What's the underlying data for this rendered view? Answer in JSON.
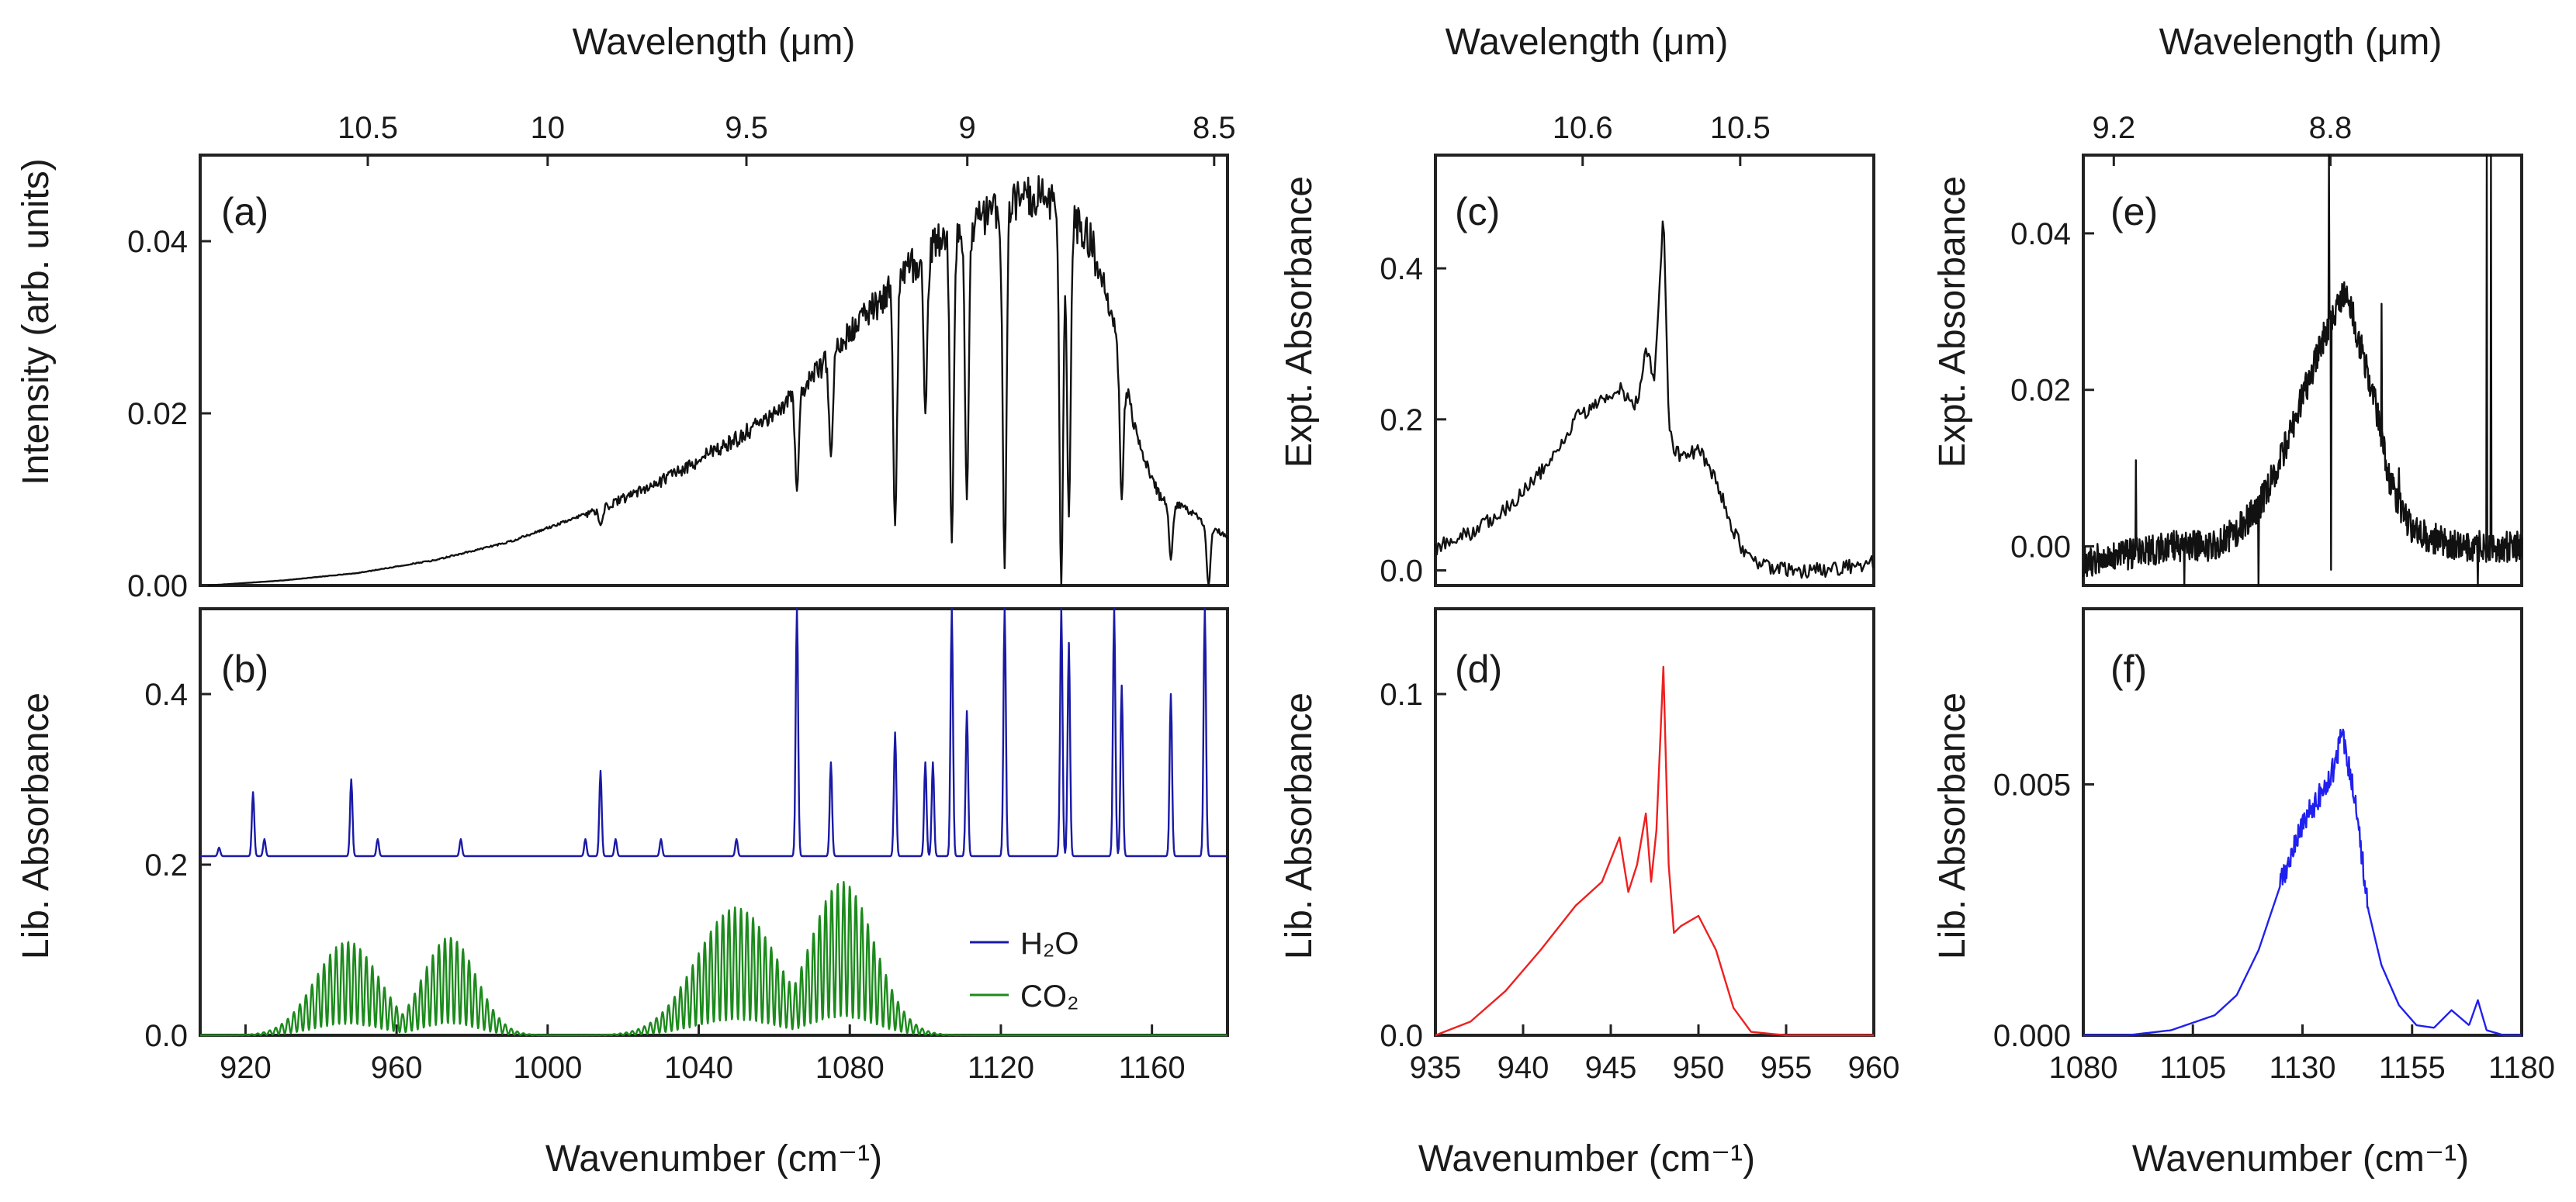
{
  "colors": {
    "intensity": "#111111",
    "h2o": "#1a1aa6",
    "co2": "#1c8a1c",
    "expt": "#111111",
    "lib_d": "#ee2020",
    "lib_f": "#2020ee"
  },
  "chart_data": [
    {
      "id": "a",
      "type": "line",
      "panel_label": "(a)",
      "ylabel": "Intensity (arb. units)",
      "xlabel": "Wavenumber (cm⁻¹)",
      "top_xlabel": "Wavelength (μm)",
      "xlim": [
        908,
        1180
      ],
      "ylim": [
        0,
        0.05
      ],
      "yticks": [
        0,
        0.02,
        0.04
      ],
      "ytick_labels": [
        "0.00",
        "0.02",
        "0.04"
      ],
      "top_ticks": [
        10.5,
        10,
        9.5,
        9,
        8.5
      ],
      "top_tick_labels": [
        "10.5",
        "10",
        "9.5",
        "9",
        "8.5"
      ],
      "series": [
        {
          "name": "Intensity",
          "x": [
            910,
            930,
            950,
            970,
            990,
            1010,
            1030,
            1050,
            1060,
            1070,
            1080,
            1090,
            1100,
            1110,
            1120,
            1126,
            1132,
            1138,
            1144,
            1150,
            1156,
            1162,
            1170,
            1176,
            1180
          ],
          "y": [
            0.0,
            0.0006,
            0.0015,
            0.003,
            0.0052,
            0.0085,
            0.0128,
            0.018,
            0.021,
            0.0255,
            0.031,
            0.036,
            0.041,
            0.044,
            0.046,
            0.048,
            0.048,
            0.046,
            0.042,
            0.032,
            0.018,
            0.011,
            0.009,
            0.007,
            0.006
          ]
        }
      ],
      "absorption_dips": [
        [
          1014,
          0.007
        ],
        [
          1066,
          0.011
        ],
        [
          1075,
          0.015
        ],
        [
          1092,
          0.007
        ],
        [
          1100,
          0.02
        ],
        [
          1107,
          0.005
        ],
        [
          1111,
          0.01
        ],
        [
          1121,
          0.002
        ],
        [
          1136,
          0.0
        ],
        [
          1138,
          0.008
        ],
        [
          1152,
          0.01
        ],
        [
          1165,
          0.003
        ],
        [
          1175,
          0.0
        ]
      ]
    },
    {
      "id": "b",
      "type": "line",
      "panel_label": "(b)",
      "ylabel": "Lib. Absorbance",
      "xlabel": "Wavenumber (cm⁻¹)",
      "xlim": [
        908,
        1180
      ],
      "ylim": [
        0,
        0.5
      ],
      "xticks": [
        920,
        960,
        1000,
        1040,
        1080,
        1120,
        1160
      ],
      "xtick_labels": [
        "920",
        "960",
        "1000",
        "1040",
        "1080",
        "1120",
        "1160"
      ],
      "yticks": [
        0,
        0.2,
        0.4
      ],
      "ytick_labels": [
        "0.0",
        "0.2",
        "0.4"
      ],
      "legend": [
        "H₂O",
        "CO₂"
      ],
      "series": [
        {
          "name": "H2O",
          "baseline": 0.21,
          "peaks": [
            [
              913,
              0.22
            ],
            [
              922,
              0.285
            ],
            [
              925,
              0.23
            ],
            [
              948,
              0.3
            ],
            [
              955,
              0.23
            ],
            [
              977,
              0.23
            ],
            [
              1010,
              0.23
            ],
            [
              1014,
              0.31
            ],
            [
              1018,
              0.23
            ],
            [
              1030,
              0.23
            ],
            [
              1050,
              0.23
            ],
            [
              1066,
              0.5
            ],
            [
              1075,
              0.32
            ],
            [
              1092,
              0.355
            ],
            [
              1100,
              0.32
            ],
            [
              1102,
              0.32
            ],
            [
              1107,
              0.5
            ],
            [
              1111,
              0.38
            ],
            [
              1121,
              0.5
            ],
            [
              1136,
              0.5
            ],
            [
              1138,
              0.46
            ],
            [
              1150,
              0.5
            ],
            [
              1152,
              0.41
            ],
            [
              1165,
              0.4
            ],
            [
              1174,
              0.5
            ]
          ]
        },
        {
          "name": "CO2",
          "bands": [
            [
              947,
              12,
              0.11
            ],
            [
              974,
              10,
              0.115
            ],
            [
              1050,
              15,
              0.15
            ],
            [
              1078,
              12,
              0.18
            ]
          ]
        }
      ]
    },
    {
      "id": "c",
      "type": "line",
      "panel_label": "(c)",
      "ylabel": "Expt. Absorbance",
      "top_xlabel": "Wavelength (μm)",
      "xlim": [
        935,
        960
      ],
      "ylim": [
        -0.02,
        0.55
      ],
      "yticks": [
        0,
        0.2,
        0.4
      ],
      "ytick_labels": [
        "0.0",
        "0.2",
        "0.4"
      ],
      "top_ticks": [
        10.6,
        10.5
      ],
      "top_tick_labels": [
        "10.6",
        "10.5"
      ],
      "series": [
        {
          "name": "Expt",
          "x": [
            935,
            937,
            939,
            941,
            943,
            944.5,
            945.5,
            946.5,
            947,
            947.5,
            948,
            948.3,
            948.6,
            949,
            950,
            951,
            952,
            953,
            955,
            957,
            960
          ],
          "y": [
            0.03,
            0.05,
            0.08,
            0.13,
            0.2,
            0.23,
            0.24,
            0.22,
            0.3,
            0.25,
            0.48,
            0.2,
            0.16,
            0.15,
            0.16,
            0.12,
            0.05,
            0.01,
            0.0,
            0.0,
            0.01
          ]
        }
      ]
    },
    {
      "id": "d",
      "type": "line",
      "panel_label": "(d)",
      "ylabel": "Lib. Absorbance",
      "xlabel": "Wavenumber (cm⁻¹)",
      "xlim": [
        935,
        960
      ],
      "ylim": [
        0,
        0.125
      ],
      "xticks": [
        935,
        940,
        945,
        950,
        955,
        960
      ],
      "xtick_labels": [
        "935",
        "940",
        "945",
        "950",
        "955",
        "960"
      ],
      "yticks": [
        0,
        0.1
      ],
      "ytick_labels": [
        "0.0",
        "0.1"
      ],
      "series": [
        {
          "name": "Lib",
          "x": [
            935,
            937,
            939,
            941,
            943,
            944.5,
            945.5,
            946,
            946.5,
            947,
            947.3,
            947.6,
            948,
            948.3,
            948.6,
            949,
            950,
            951,
            952,
            953,
            955,
            960
          ],
          "y": [
            0.0,
            0.004,
            0.013,
            0.025,
            0.038,
            0.045,
            0.058,
            0.042,
            0.05,
            0.065,
            0.045,
            0.06,
            0.108,
            0.05,
            0.03,
            0.032,
            0.035,
            0.025,
            0.008,
            0.001,
            0.0,
            0.0
          ]
        }
      ]
    },
    {
      "id": "e",
      "type": "line",
      "panel_label": "(e)",
      "ylabel": "Expt. Absorbance",
      "top_xlabel": "Wavelength (μm)",
      "xlim": [
        1080,
        1180
      ],
      "ylim": [
        -0.005,
        0.05
      ],
      "yticks": [
        0,
        0.02,
        0.04
      ],
      "ytick_labels": [
        "0.00",
        "0.02",
        "0.04"
      ],
      "top_ticks": [
        9.2,
        8.8
      ],
      "top_tick_labels": [
        "9.2",
        "8.8"
      ],
      "series": [
        {
          "name": "Expt",
          "x": [
            1080,
            1090,
            1100,
            1110,
            1115,
            1120,
            1125,
            1130,
            1135,
            1138,
            1140,
            1143,
            1146,
            1150,
            1155,
            1160,
            1165,
            1170,
            1180
          ],
          "y": [
            -0.002,
            -0.001,
            0.0,
            0.0,
            0.002,
            0.005,
            0.011,
            0.019,
            0.027,
            0.031,
            0.033,
            0.026,
            0.02,
            0.008,
            0.002,
            0.001,
            0.0,
            0.0,
            0.0
          ]
        }
      ],
      "spikes": [
        [
          1092,
          0.011
        ],
        [
          1103,
          -0.005
        ],
        [
          1120,
          -0.005
        ],
        [
          1136,
          0.05
        ],
        [
          1136.5,
          -0.003
        ],
        [
          1148,
          0.031
        ],
        [
          1152,
          0.01
        ],
        [
          1170,
          -0.005
        ],
        [
          1172,
          0.05
        ],
        [
          1173,
          0.05
        ]
      ]
    },
    {
      "id": "f",
      "type": "line",
      "panel_label": "(f)",
      "ylabel": "Lib. Absorbance",
      "xlabel": "Wavenumber (cm⁻¹)",
      "xlim": [
        1080,
        1180
      ],
      "ylim": [
        0,
        0.0085
      ],
      "xticks": [
        1080,
        1105,
        1130,
        1155,
        1180
      ],
      "xtick_labels": [
        "1080",
        "1105",
        "1130",
        "1155",
        "1180"
      ],
      "yticks": [
        0,
        0.005
      ],
      "ytick_labels": [
        "0.000",
        "0.005"
      ],
      "series": [
        {
          "name": "Lib",
          "x": [
            1080,
            1090,
            1100,
            1110,
            1115,
            1120,
            1125,
            1128,
            1131,
            1133,
            1135,
            1137,
            1139,
            1141,
            1143,
            1145,
            1148,
            1152,
            1156,
            1160,
            1164,
            1168,
            1170,
            1172,
            1176,
            1180
          ],
          "y": [
            0.0,
            0.0,
            0.0001,
            0.0004,
            0.0008,
            0.0017,
            0.003,
            0.0038,
            0.0044,
            0.0046,
            0.005,
            0.0053,
            0.006,
            0.0052,
            0.004,
            0.0025,
            0.0014,
            0.0006,
            0.0002,
            0.00015,
            0.0005,
            0.0002,
            0.0007,
            0.0001,
            0.0,
            0.0
          ]
        }
      ]
    }
  ]
}
